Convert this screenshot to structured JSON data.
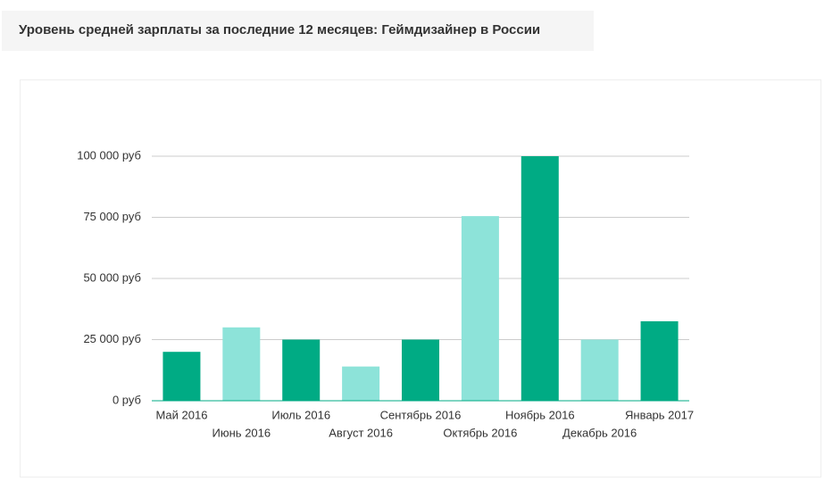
{
  "chart_data": {
    "type": "bar",
    "title": "Уровень средней зарплаты за последние 12 месяцев: Геймдизайнер в России",
    "categories": [
      "Май 2016",
      "Июнь 2016",
      "Июль 2016",
      "Август 2016",
      "Сентябрь 2016",
      "Октябрь 2016",
      "Ноябрь 2016",
      "Декабрь 2016",
      "Январь 2017"
    ],
    "values": [
      20000,
      30000,
      25000,
      14000,
      25000,
      75500,
      100000,
      25000,
      32500
    ],
    "colors": [
      "#00ab84",
      "#8de3d9",
      "#00ab84",
      "#8de3d9",
      "#00ab84",
      "#8de3d9",
      "#00ab84",
      "#8de3d9",
      "#00ab84"
    ],
    "ylim": [
      0,
      100000
    ],
    "yticks": [
      {
        "value": 0,
        "label": "0 руб"
      },
      {
        "value": 25000,
        "label": "25 000 руб"
      },
      {
        "value": 50000,
        "label": "50 000 руб"
      },
      {
        "value": 75000,
        "label": "75 000 руб"
      },
      {
        "value": 100000,
        "label": "100 000 руб"
      }
    ],
    "grid": true
  }
}
